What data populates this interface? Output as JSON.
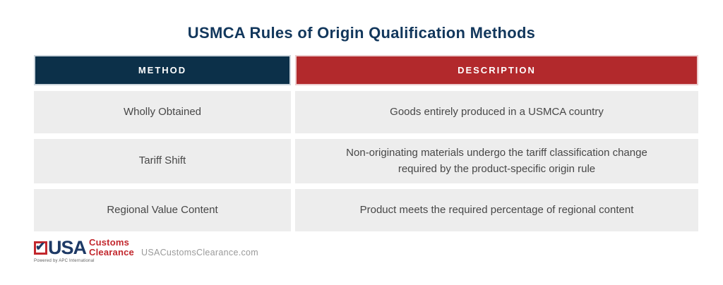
{
  "chart_data": {
    "type": "table",
    "title": "USMCA Rules of Origin Qualification Methods",
    "columns": [
      "METHOD",
      "DESCRIPTION"
    ],
    "rows": [
      [
        "Wholly Obtained",
        "Goods entirely produced in a USMCA country"
      ],
      [
        "Tariff Shift",
        "Non-originating materials undergo the tariff classification change required by the product-specific origin rule"
      ],
      [
        "Regional Value Content",
        "Product meets the required percentage of regional content"
      ]
    ],
    "layout_hints": {
      "method_header_color": "#0c3049",
      "description_header_color": "#b2292c",
      "row_background": "#ededed",
      "title_color": "#12375c"
    }
  },
  "footer": {
    "logo": {
      "usa": "USA",
      "customs": "Customs",
      "clearance": "Clearance",
      "powered_by": "Powered by APC International",
      "check_icon": "checkmark"
    },
    "website": "USACustomsClearance.com"
  }
}
